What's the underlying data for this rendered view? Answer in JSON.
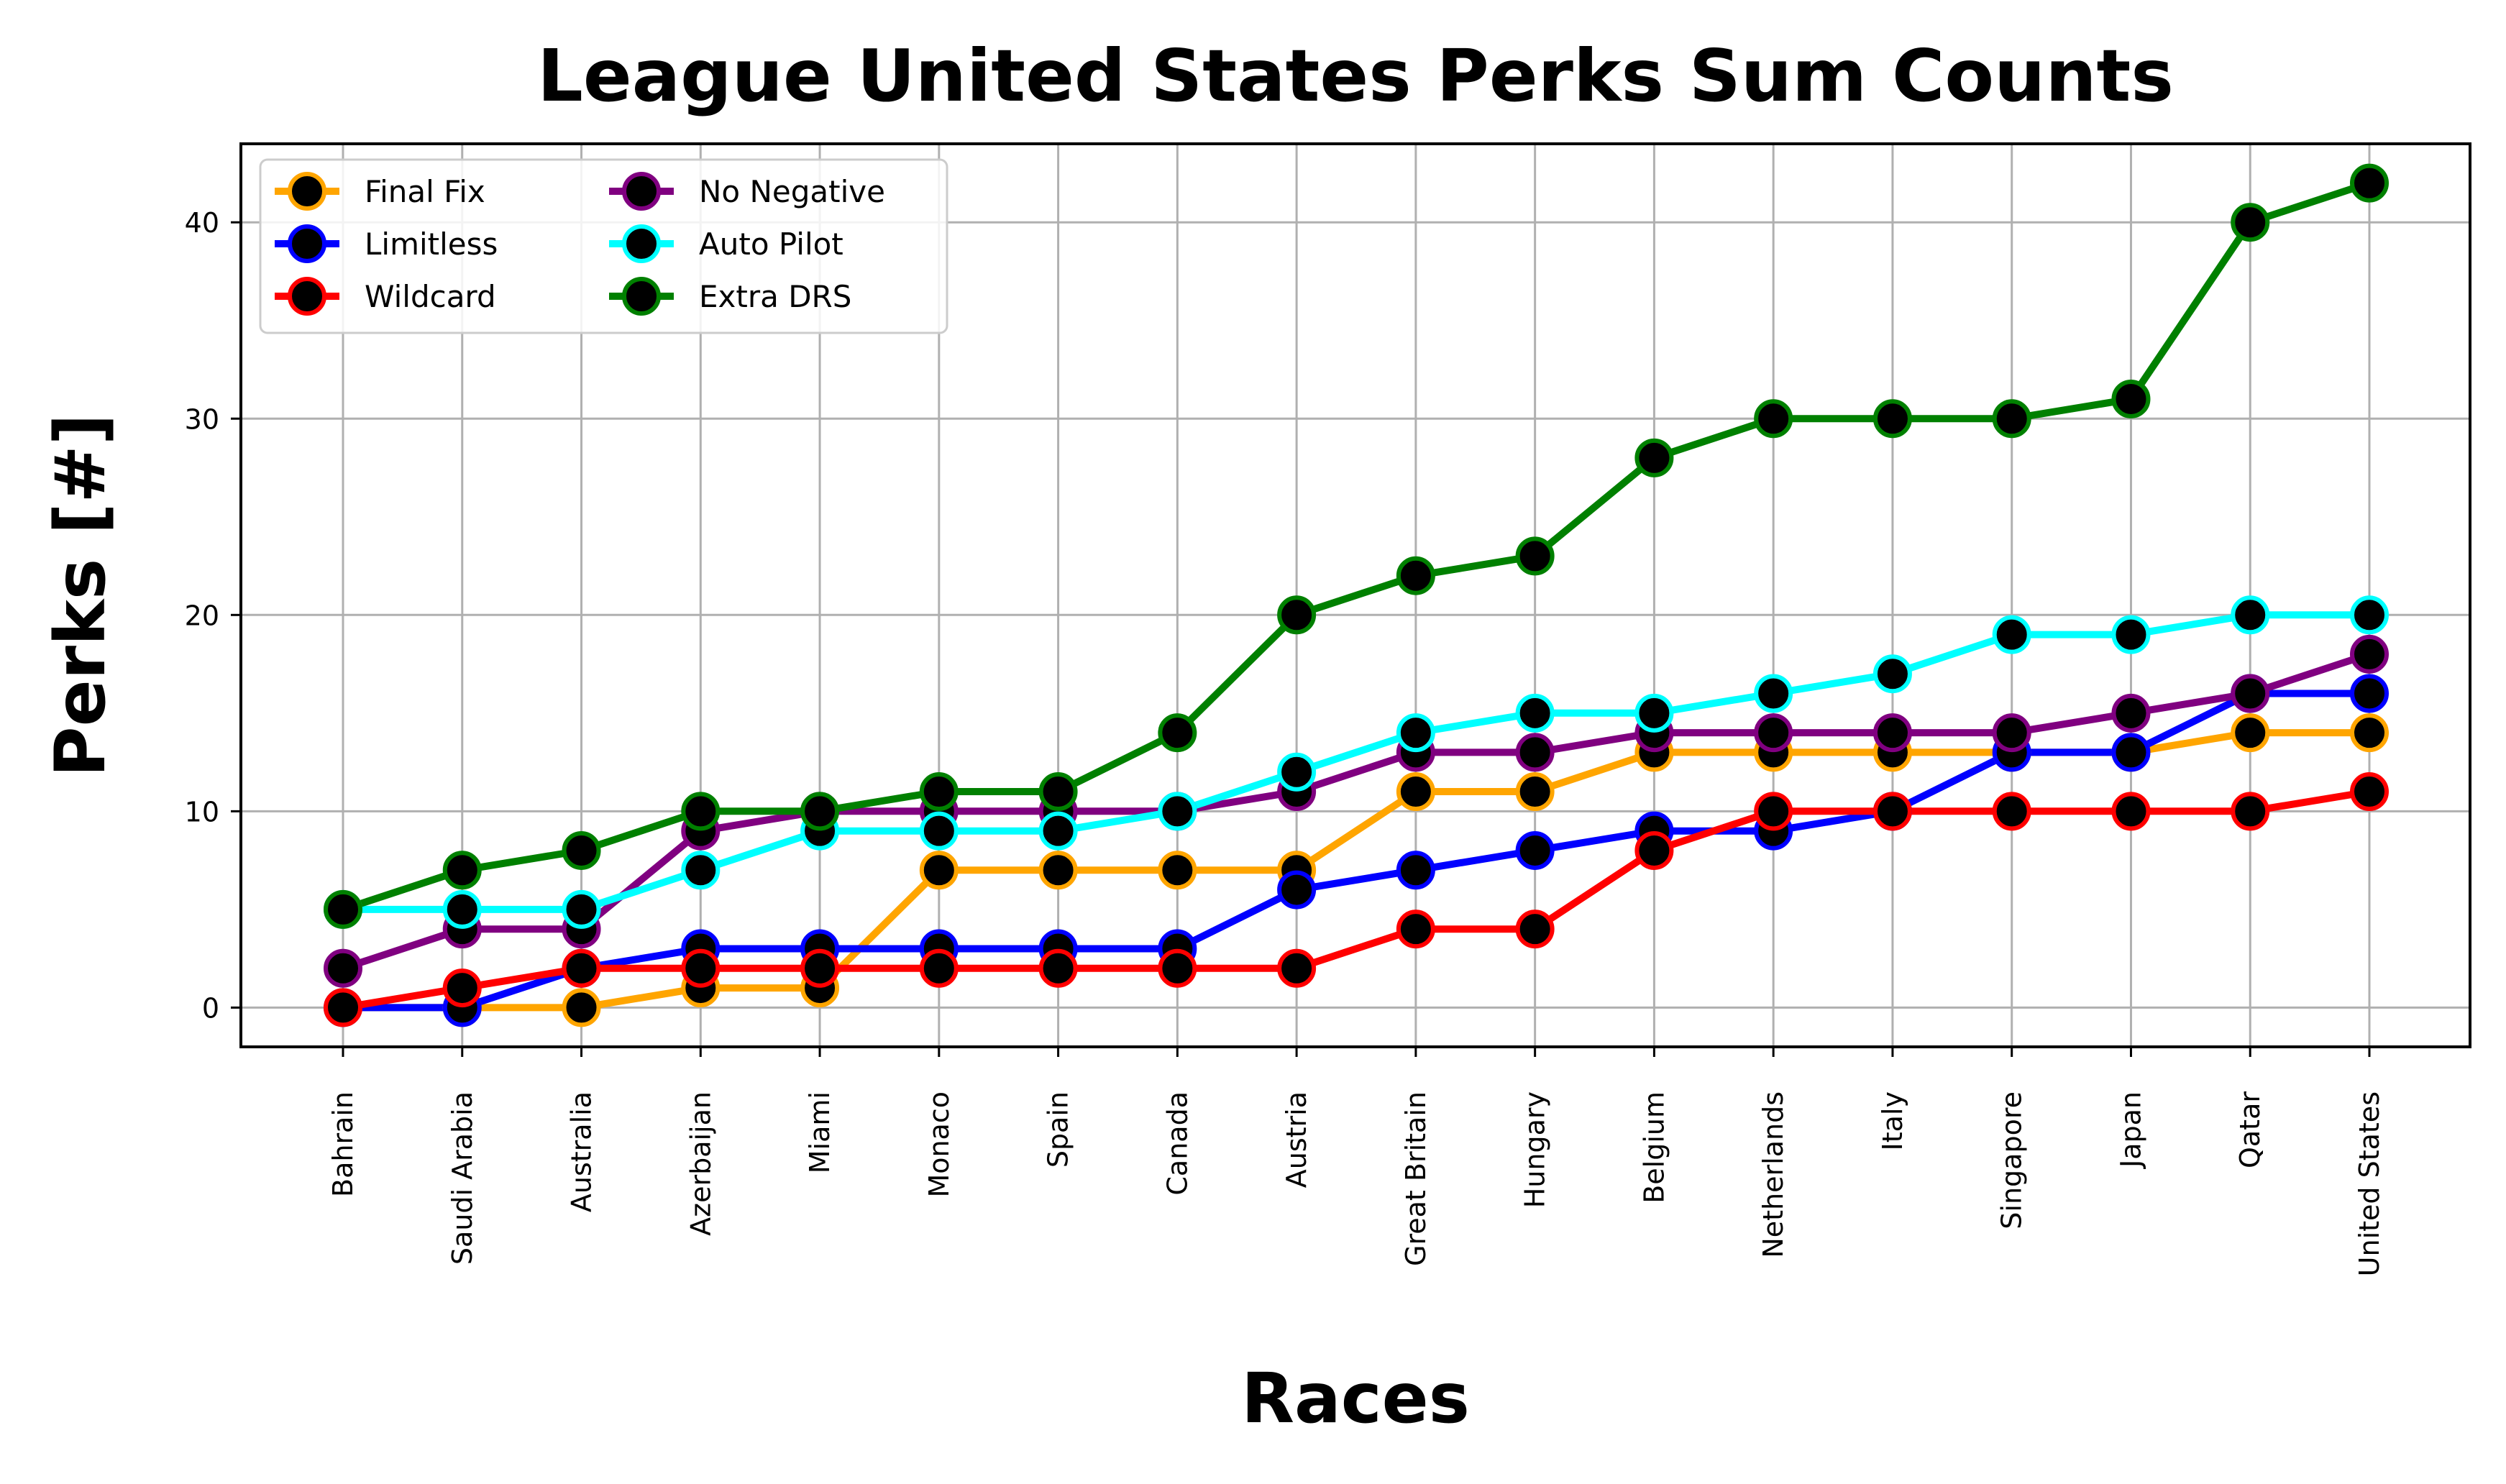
{
  "chart_data": {
    "type": "line",
    "title": "League United States Perks Sum Counts",
    "xlabel": "Races",
    "ylabel": "Perks [#]",
    "ylim": [
      -2,
      44
    ],
    "yticks": [
      0,
      10,
      20,
      30,
      40
    ],
    "grid": true,
    "legend_position": "top-left",
    "legend_columns": 2,
    "categories": [
      "Bahrain",
      "Saudi Arabia",
      "Australia",
      "Azerbaijan",
      "Miami",
      "Monaco",
      "Spain",
      "Canada",
      "Austria",
      "Great Britain",
      "Hungary",
      "Belgium",
      "Netherlands",
      "Italy",
      "Singapore",
      "Japan",
      "Qatar",
      "United States"
    ],
    "marker_fill": "#000000",
    "series": [
      {
        "name": "Final Fix",
        "color": "#FFA500",
        "values": [
          0,
          0,
          0,
          1,
          1,
          7,
          7,
          7,
          7,
          11,
          11,
          13,
          13,
          13,
          13,
          13,
          14,
          14
        ]
      },
      {
        "name": "Limitless",
        "color": "#0000FF",
        "values": [
          0,
          0,
          2,
          3,
          3,
          3,
          3,
          3,
          6,
          7,
          8,
          9,
          9,
          10,
          13,
          13,
          16,
          16
        ]
      },
      {
        "name": "Wildcard",
        "color": "#FF0000",
        "values": [
          0,
          1,
          2,
          2,
          2,
          2,
          2,
          2,
          2,
          4,
          4,
          8,
          10,
          10,
          10,
          10,
          10,
          11
        ]
      },
      {
        "name": "No Negative",
        "color": "#800080",
        "values": [
          2,
          4,
          4,
          9,
          10,
          10,
          10,
          10,
          11,
          13,
          13,
          14,
          14,
          14,
          14,
          15,
          16,
          18
        ]
      },
      {
        "name": "Auto Pilot",
        "color": "#00FFFF",
        "values": [
          5,
          5,
          5,
          7,
          9,
          9,
          9,
          10,
          12,
          14,
          15,
          15,
          16,
          17,
          19,
          19,
          20,
          20
        ]
      },
      {
        "name": "Extra DRS",
        "color": "#008000",
        "values": [
          5,
          7,
          8,
          10,
          10,
          11,
          11,
          14,
          20,
          22,
          23,
          28,
          30,
          30,
          30,
          31,
          40,
          42
        ]
      }
    ]
  }
}
